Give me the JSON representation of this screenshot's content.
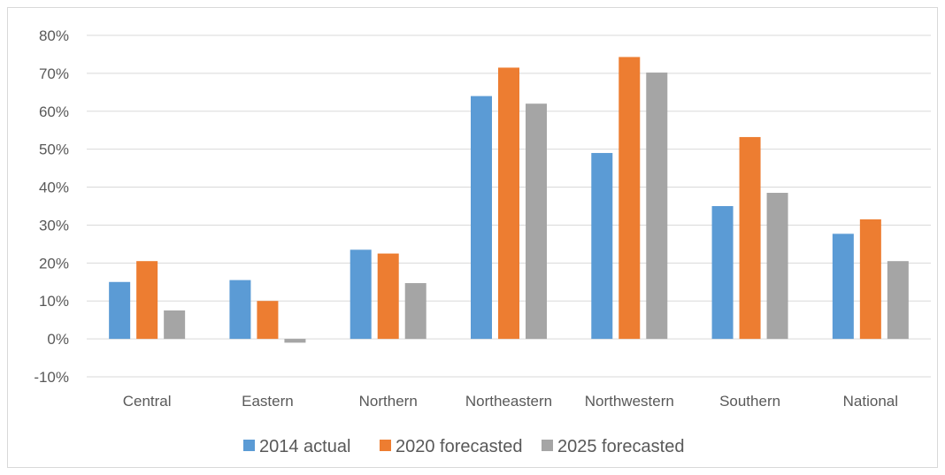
{
  "chart_data": {
    "type": "bar",
    "categories": [
      "Central",
      "Eastern",
      "Northern",
      "Northeastern",
      "Northwestern",
      "Southern",
      "National"
    ],
    "series": [
      {
        "name": "2014 actual",
        "color": "#5b9bd5",
        "values": [
          15.0,
          15.5,
          23.5,
          64.0,
          49.0,
          35.0,
          27.7
        ]
      },
      {
        "name": "2020 forecasted",
        "color": "#ed7d31",
        "values": [
          20.5,
          10.0,
          22.5,
          71.5,
          74.3,
          53.2,
          31.5
        ]
      },
      {
        "name": "2025 forecasted",
        "color": "#a5a5a5",
        "values": [
          7.5,
          -1.0,
          14.7,
          62.0,
          70.2,
          38.5,
          20.5
        ]
      }
    ],
    "ylim": [
      -10,
      80
    ],
    "yticks": [
      -10,
      0,
      10,
      20,
      30,
      40,
      50,
      60,
      70,
      80
    ],
    "ytick_labels": [
      "-10%",
      "0%",
      "10%",
      "20%",
      "30%",
      "40%",
      "50%",
      "60%",
      "70%",
      "80%"
    ],
    "grid": true,
    "legend_position": "bottom",
    "title": "",
    "xlabel": "",
    "ylabel": ""
  }
}
